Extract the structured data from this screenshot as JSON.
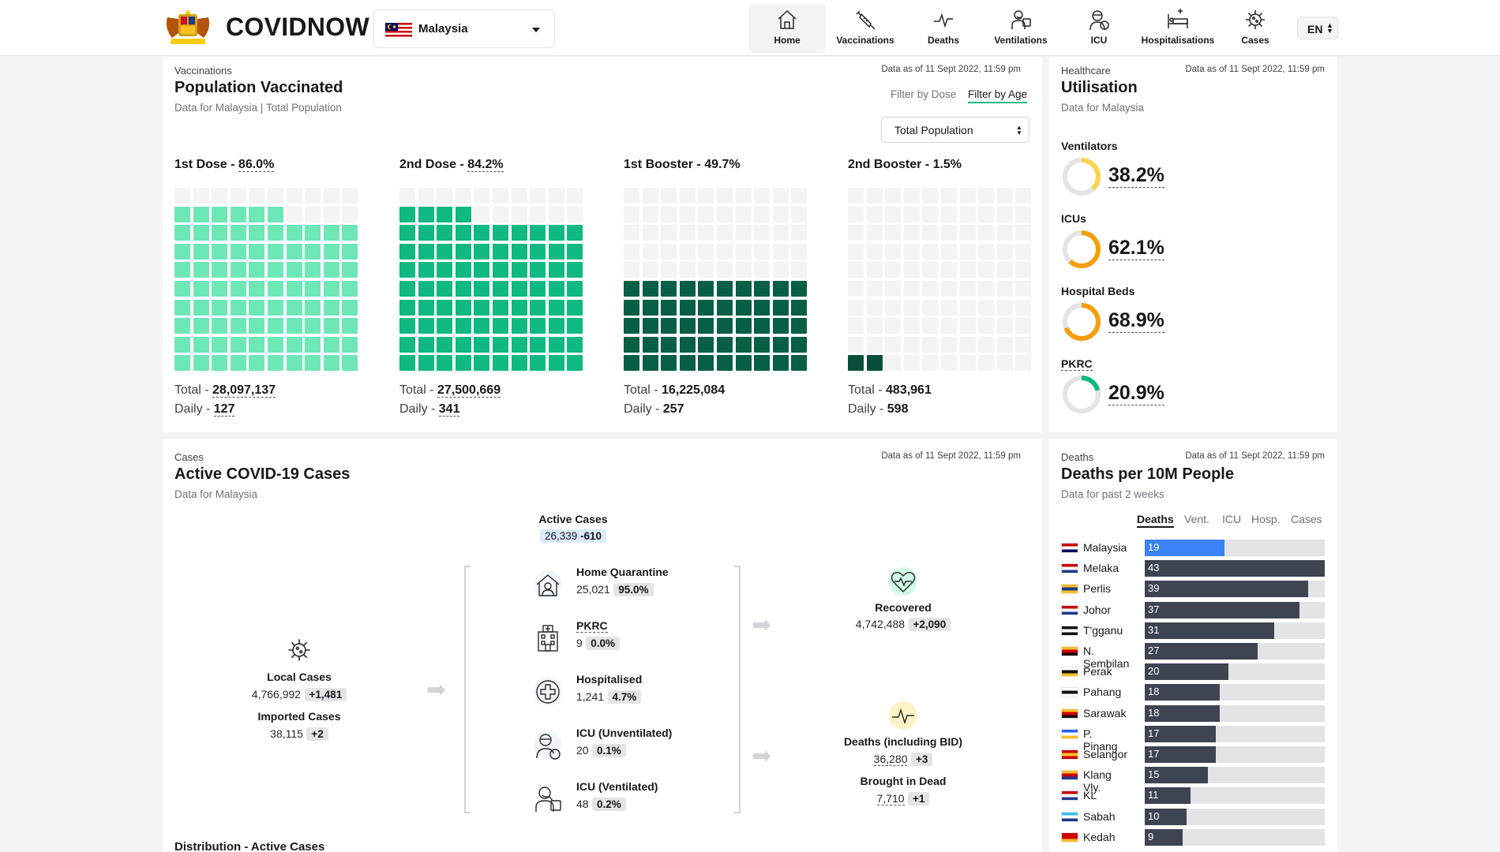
{
  "header": {
    "brand": "COVIDNOW",
    "country": "Malaysia",
    "lang": "EN",
    "nav": [
      {
        "label": "Home",
        "icon": "home-icon",
        "active": true
      },
      {
        "label": "Vaccinations",
        "icon": "syringe-icon"
      },
      {
        "label": "Deaths",
        "icon": "pulse-icon"
      },
      {
        "label": "Ventilations",
        "icon": "ventilator-icon"
      },
      {
        "label": "ICU",
        "icon": "icu-icon"
      },
      {
        "label": "Hospitalisations",
        "icon": "hospital-bed-icon"
      },
      {
        "label": "Cases",
        "icon": "virus-icon"
      }
    ]
  },
  "vaccination": {
    "kicker": "Vaccinations",
    "title": "Population Vaccinated",
    "subtitle_prefix": "Data for Malaysia",
    "subtitle_suffix": "Total Population",
    "as_of": "Data as of 11 Sept 2022, 11:59 pm",
    "filter_dose": "Filter by Dose",
    "filter_age": "Filter by Age",
    "population_select": "Total Population",
    "total_label": "Total - ",
    "daily_label": "Daily - ",
    "doses": [
      {
        "label": "1st Dose - ",
        "pct": "86.0%",
        "pct_value": 86.0,
        "total": "28,097,137",
        "daily": "127",
        "color": "#6ee7b7"
      },
      {
        "label": "2nd Dose - ",
        "pct": "84.2%",
        "pct_value": 84.2,
        "total": "27,500,669",
        "daily": "341",
        "color": "#10b981"
      },
      {
        "label": "1st Booster - ",
        "pct": "49.7%",
        "pct_value": 49.7,
        "total": "16,225,084",
        "daily": "257",
        "color": "#065f46"
      },
      {
        "label": "2nd Booster - ",
        "pct": "1.5%",
        "pct_value": 1.5,
        "total": "483,961",
        "daily": "598",
        "color": "#064e3b"
      }
    ]
  },
  "utilisation": {
    "kicker": "Healthcare",
    "title": "Utilisation",
    "subtitle": "Data for Malaysia",
    "as_of": "Data as of 11 Sept 2022, 11:59 pm",
    "items": [
      {
        "label": "Ventilators",
        "value": "38.2%",
        "pct": 38.2,
        "color": "#fcd34d"
      },
      {
        "label": "ICUs",
        "value": "62.1%",
        "pct": 62.1,
        "color": "#f59e0b"
      },
      {
        "label": "Hospital Beds",
        "value": "68.9%",
        "pct": 68.9,
        "color": "#f59e0b"
      },
      {
        "label": "PKRC",
        "value": "20.9%",
        "pct": 20.9,
        "color": "#10b981"
      }
    ]
  },
  "cases": {
    "kicker": "Cases",
    "title": "Active COVID-19 Cases",
    "subtitle": "Data for Malaysia",
    "as_of": "Data as of 11 Sept 2022, 11:59 pm",
    "active": {
      "label": "Active Cases",
      "value": "26,339",
      "change": "-610"
    },
    "local": {
      "label": "Local Cases",
      "value": "4,766,992",
      "change": "+1,481"
    },
    "imported": {
      "label": "Imported Cases",
      "value": "38,115",
      "change": "+2"
    },
    "breakdown": [
      {
        "label": "Home Quarantine",
        "value": "25,021",
        "pct": "95.0%",
        "icon": "home-quarantine-icon"
      },
      {
        "label": "PKRC",
        "value": "9",
        "pct": "0.0%",
        "icon": "pkrc-building-icon"
      },
      {
        "label": "Hospitalised",
        "value": "1,241",
        "pct": "4.7%",
        "icon": "hospital-cross-icon"
      },
      {
        "label": "ICU (Unventilated)",
        "value": "20",
        "pct": "0.1%",
        "icon": "icu-patient-icon"
      },
      {
        "label": "ICU (Ventilated)",
        "value": "48",
        "pct": "0.2%",
        "icon": "ventilated-patient-icon"
      }
    ],
    "recovered": {
      "label": "Recovered",
      "value": "4,742,488",
      "change": "+2,090"
    },
    "deaths": {
      "label": "Deaths (including BID)",
      "value": "36,280",
      "change": "+3"
    },
    "bid": {
      "label": "Brought in Dead",
      "value": "7,710",
      "change": "+1"
    },
    "distribution_title": "Distribution - Active Cases"
  },
  "deaths_panel": {
    "kicker": "Deaths",
    "title": "Deaths per 10M People",
    "subtitle": "Data for past 2 weeks",
    "as_of": "Data as of 11 Sept 2022, 11:59 pm",
    "tabs": [
      "Deaths",
      "Vent.",
      "ICU",
      "Hosp.",
      "Cases"
    ],
    "active_tab": "Deaths",
    "chart_data": {
      "type": "bar",
      "max": 43,
      "categories": [
        "Malaysia",
        "Melaka",
        "Perlis",
        "Johor",
        "T'gganu",
        "N. Sembilan",
        "Perak",
        "Pahang",
        "Sarawak",
        "P. Pinang",
        "Selangor",
        "Klang Vly.",
        "KL",
        "Sabah",
        "Kedah"
      ],
      "values": [
        19,
        43,
        39,
        37,
        31,
        27,
        20,
        18,
        18,
        17,
        17,
        15,
        11,
        10,
        9
      ],
      "highlight": "Malaysia",
      "colors": {
        "highlight": "#3b82f6",
        "default": "#3f4452",
        "track": "#e4e4e7"
      }
    }
  }
}
